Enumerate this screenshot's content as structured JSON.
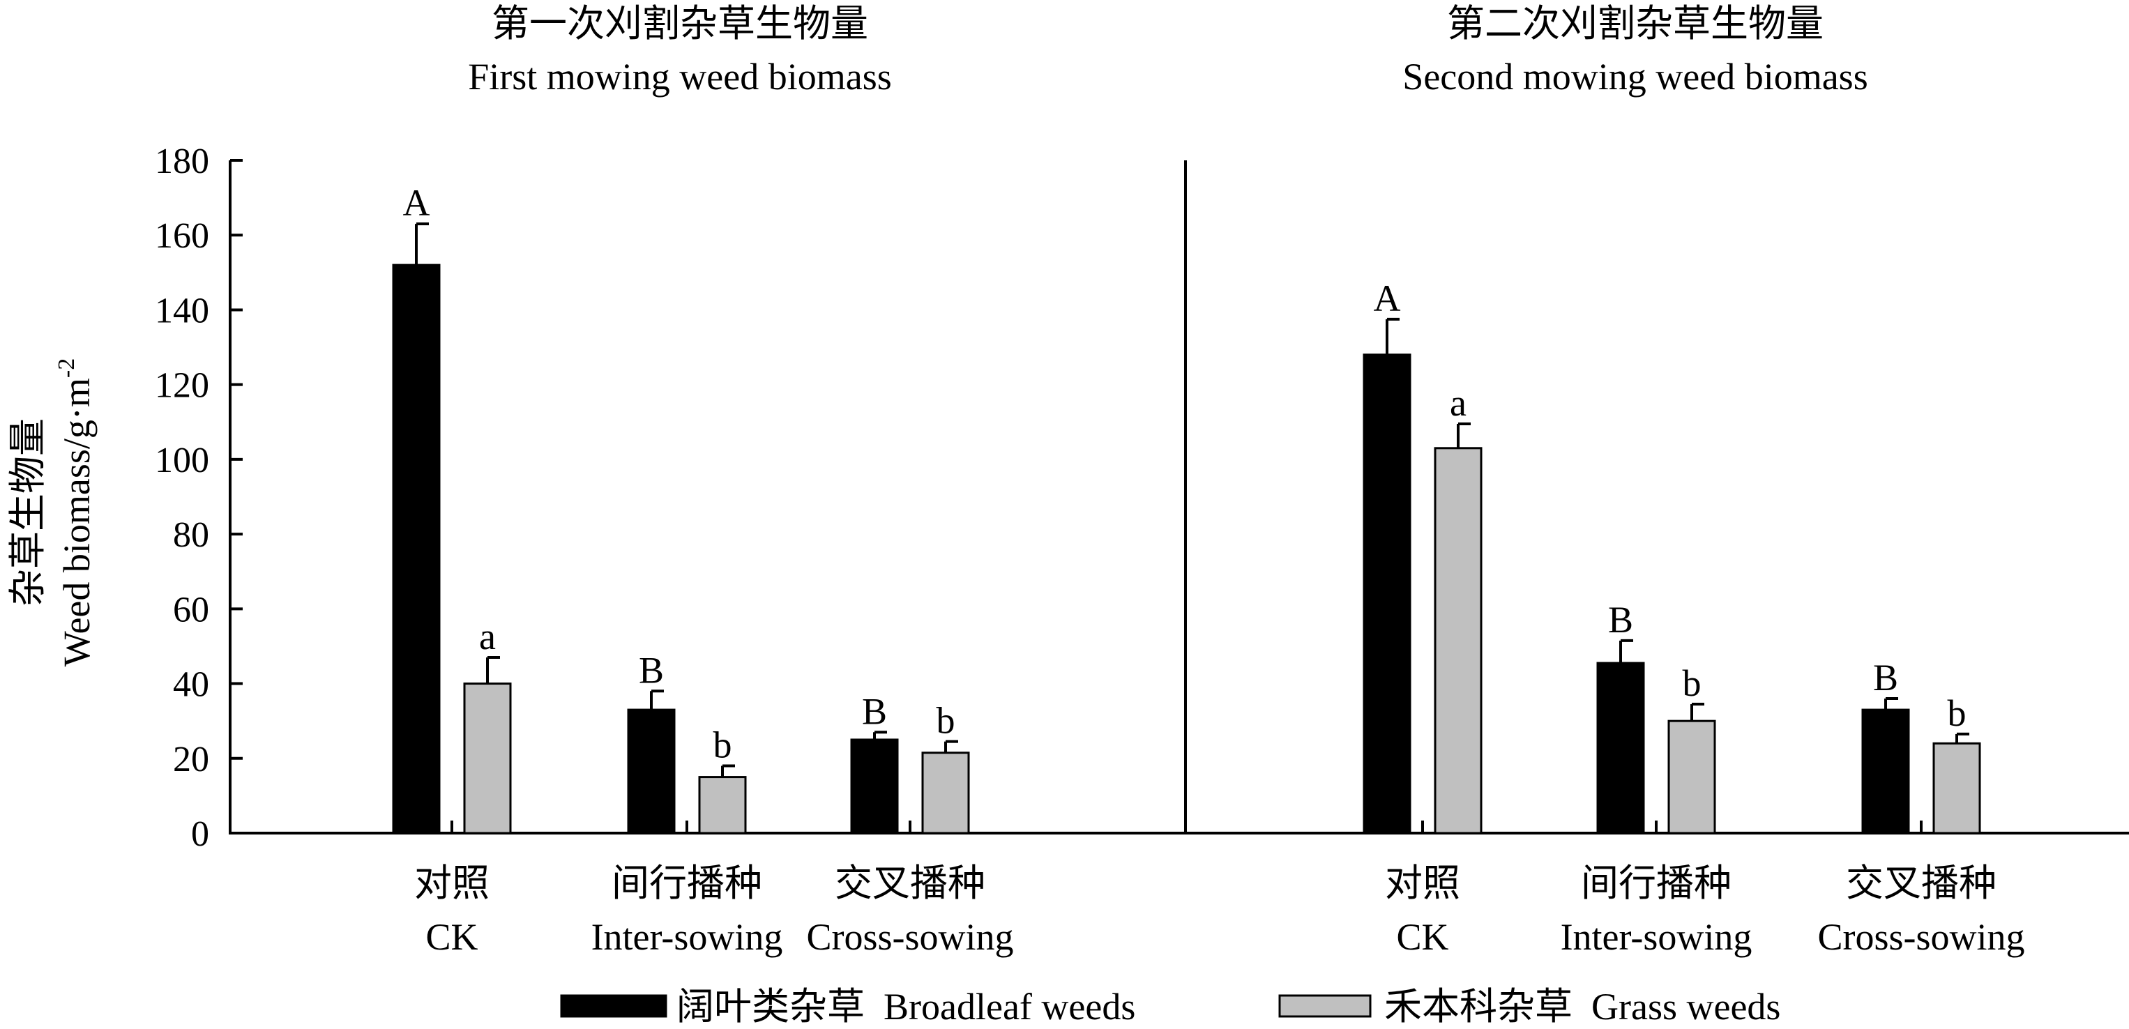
{
  "colors": {
    "broadleaf": "#000000",
    "grass": "#c0c0c0",
    "axis": "#000000"
  },
  "y_axis": {
    "label_cn": "杂草生物量",
    "label_en": "Weed biomass/g·m",
    "label_sup": "-2",
    "ticks": [
      "0",
      "20",
      "40",
      "60",
      "80",
      "100",
      "120",
      "140",
      "160",
      "180"
    ]
  },
  "legend": {
    "broadleaf": "阔叶类杂草  Broadleaf weeds",
    "grass": "禾本科杂草  Grass weeds"
  },
  "chart_data": [
    {
      "type": "bar",
      "title": "第一次刈割杂草生物量",
      "subtitle": "First mowing weed biomass",
      "categories": [
        "对照",
        "间行播种",
        "交叉播种"
      ],
      "categories_en": [
        "CK",
        "Inter-sowing",
        "Cross-sowing"
      ],
      "ylabel": "杂草生物量 Weed biomass/g·m-2",
      "ylim": [
        0,
        180
      ],
      "series": [
        {
          "name": "阔叶类杂草 Broadleaf weeds",
          "values": [
            152,
            33,
            25
          ],
          "errors": [
            11,
            5,
            2
          ],
          "letters": [
            "A",
            "B",
            "B"
          ]
        },
        {
          "name": "禾本科杂草 Grass weeds",
          "values": [
            40,
            15,
            21.5
          ],
          "errors": [
            7,
            3,
            3
          ],
          "letters": [
            "a",
            "b",
            "b"
          ]
        }
      ]
    },
    {
      "type": "bar",
      "title": "第二次刈割杂草生物量",
      "subtitle": "Second mowing weed biomass",
      "categories": [
        "对照",
        "间行播种",
        "交叉播种"
      ],
      "categories_en": [
        "CK",
        "Inter-sowing",
        "Cross-sowing"
      ],
      "ylim": [
        0,
        180
      ],
      "series": [
        {
          "name": "阔叶类杂草 Broadleaf weeds",
          "values": [
            128,
            45.5,
            33
          ],
          "errors": [
            9.5,
            6,
            3
          ],
          "letters": [
            "A",
            "B",
            "B"
          ]
        },
        {
          "name": "禾本科杂草 Grass weeds",
          "values": [
            103,
            30,
            24
          ],
          "errors": [
            6.5,
            4.5,
            2.5
          ],
          "letters": [
            "a",
            "b",
            "b"
          ]
        }
      ]
    }
  ]
}
